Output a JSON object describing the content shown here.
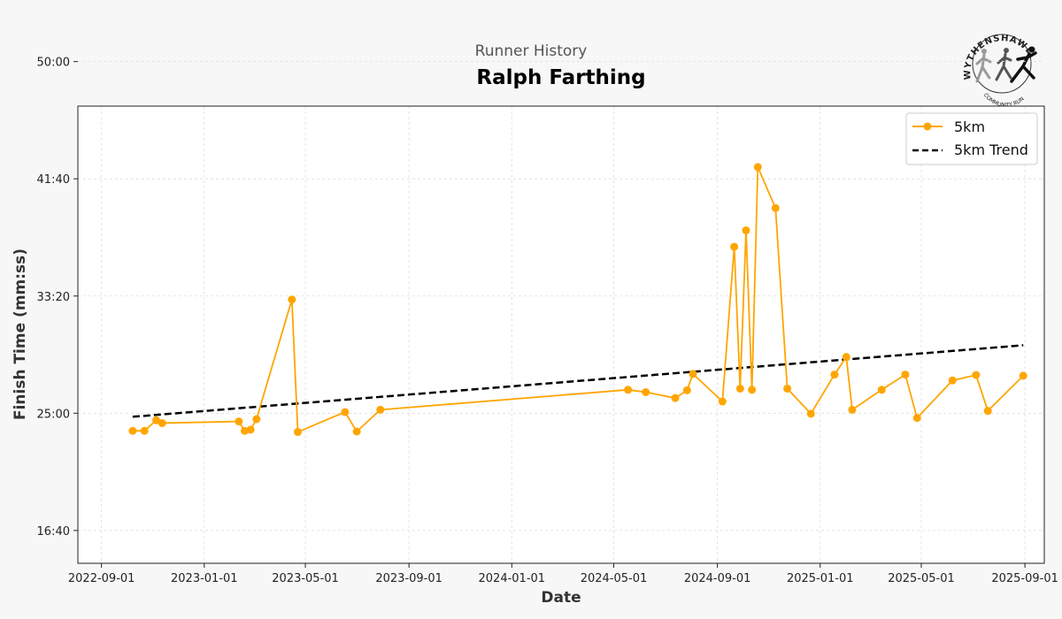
{
  "header": {
    "subtitle": "Runner History",
    "title": "Ralph Farthing"
  },
  "logo": {
    "text": "WYTHENSHAWE",
    "subtext": "COMMUNITY RUN"
  },
  "chart_data": {
    "type": "line",
    "xlabel": "Date",
    "ylabel": "Finish Time (mm:ss)",
    "x_type": "date",
    "xlim": [
      "2022-08-04",
      "2025-09-24"
    ],
    "ylim": [
      860,
      2810
    ],
    "x_ticks": [
      "2022-09-01",
      "2023-01-01",
      "2023-05-01",
      "2023-09-01",
      "2024-01-01",
      "2024-05-01",
      "2024-09-01",
      "2025-01-01",
      "2025-05-01",
      "2025-09-01"
    ],
    "y_ticks": [
      1000,
      1500,
      2000,
      2500,
      3000
    ],
    "y_tick_labels": [
      "16:40",
      "25:00",
      "33:20",
      "41:40",
      "50:00"
    ],
    "grid": true,
    "legend_position": "top-right",
    "colors": {
      "series": "#ffa500",
      "trend": "#000000",
      "plot_bg": "#ffffff",
      "page_bg": "#f7f7f7"
    },
    "series": [
      {
        "name": "5km",
        "style": "line-marker",
        "points": [
          [
            "2022-10-08",
            1425
          ],
          [
            "2022-10-22",
            1425
          ],
          [
            "2022-11-05",
            1470
          ],
          [
            "2022-11-12",
            1458
          ],
          [
            "2023-02-11",
            1465
          ],
          [
            "2023-02-18",
            1425
          ],
          [
            "2023-02-25",
            1430
          ],
          [
            "2023-03-04",
            1475
          ],
          [
            "2023-04-15",
            1985
          ],
          [
            "2023-04-22",
            1420
          ],
          [
            "2023-06-17",
            1505
          ],
          [
            "2023-07-01",
            1422
          ],
          [
            "2023-07-29",
            1515
          ],
          [
            "2024-05-18",
            1600
          ],
          [
            "2024-06-08",
            1590
          ],
          [
            "2024-07-13",
            1565
          ],
          [
            "2024-07-27",
            1598
          ],
          [
            "2024-08-03",
            1668
          ],
          [
            "2024-09-07",
            1550
          ],
          [
            "2024-09-21",
            2210
          ],
          [
            "2024-09-28",
            1605
          ],
          [
            "2024-10-05",
            2280
          ],
          [
            "2024-10-12",
            1600
          ],
          [
            "2024-10-19",
            2550
          ],
          [
            "2024-11-09",
            2375
          ],
          [
            "2024-11-23",
            1605
          ],
          [
            "2024-12-21",
            1498
          ],
          [
            "2025-01-18",
            1665
          ],
          [
            "2025-02-01",
            1740
          ],
          [
            "2025-02-08",
            1515
          ],
          [
            "2025-03-15",
            1600
          ],
          [
            "2025-04-12",
            1665
          ],
          [
            "2025-04-26",
            1480
          ],
          [
            "2025-06-07",
            1640
          ],
          [
            "2025-07-05",
            1663
          ],
          [
            "2025-07-19",
            1510
          ],
          [
            "2025-08-30",
            1660
          ]
        ]
      },
      {
        "name": "5km Trend",
        "style": "dashed",
        "points": [
          [
            "2022-10-08",
            1485
          ],
          [
            "2025-08-30",
            1790
          ]
        ]
      }
    ]
  }
}
